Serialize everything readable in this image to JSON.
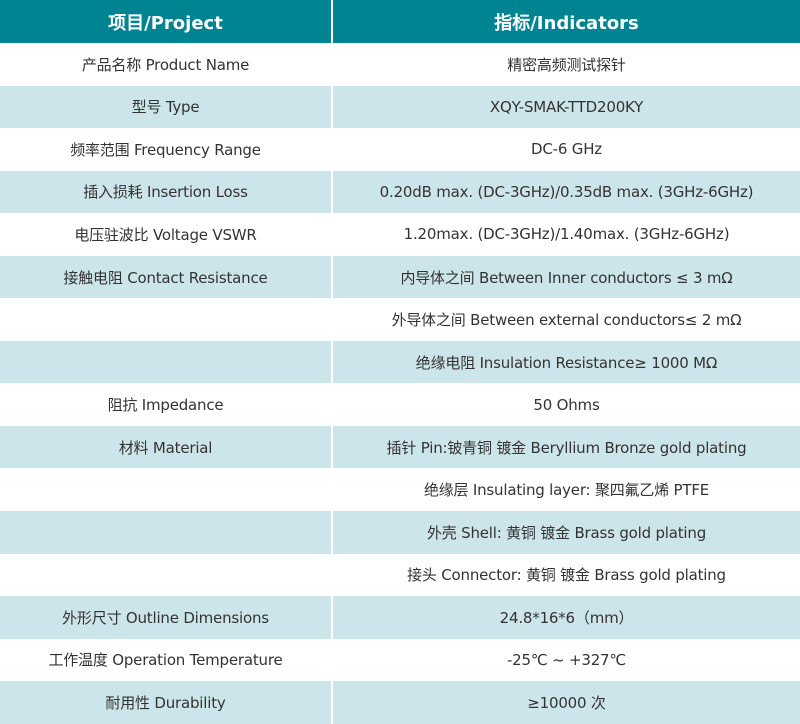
{
  "header": {
    "project": "项目/Project",
    "indicators": "指标/Indicators"
  },
  "colors": {
    "header_bg": "#008492",
    "stripe_bg": "#cce5ea"
  },
  "rows": [
    {
      "project": "产品名称 Product Name",
      "indicator": "精密高频测试探针"
    },
    {
      "project": "型号 Type",
      "indicator": "XQY-SMAK-TTD200KY"
    },
    {
      "project": "频率范围 Frequency Range",
      "indicator": "DC-6 GHz"
    },
    {
      "project": "插入损耗 Insertion Loss",
      "indicator": "0.20dB max. (DC-3GHz)/0.35dB max. (3GHz-6GHz)"
    },
    {
      "project": "电压驻波比 Voltage VSWR",
      "indicator": "1.20max. (DC-3GHz)/1.40max. (3GHz-6GHz)"
    },
    {
      "project": "接触电阻 Contact Resistance",
      "indicator": "内导体之间 Between Inner conductors ≤ 3 mΩ"
    },
    {
      "project": "",
      "indicator": "外导体之间 Between external conductors≤ 2 mΩ"
    },
    {
      "project": "",
      "indicator": "绝缘电阻 Insulation Resistance≥ 1000 MΩ"
    },
    {
      "project": "阻抗 Impedance",
      "indicator": "50 Ohms"
    },
    {
      "project": "材料 Material",
      "indicator": "插针 Pin:铍青铜 镀金 Beryllium Bronze gold plating"
    },
    {
      "project": "",
      "indicator": "绝缘层 Insulating layer: 聚四氟乙烯 PTFE"
    },
    {
      "project": "",
      "indicator": "外壳 Shell: 黄铜 镀金 Brass gold plating"
    },
    {
      "project": "",
      "indicator": "接头 Connector: 黄铜 镀金 Brass gold plating"
    },
    {
      "project": "外形尺寸 Outline Dimensions",
      "indicator": "24.8*16*6（mm）"
    },
    {
      "project": "工作温度 Operation Temperature",
      "indicator": "-25℃ ~ +327℃"
    },
    {
      "project": "耐用性 Durability",
      "indicator": "≥10000 次"
    }
  ]
}
